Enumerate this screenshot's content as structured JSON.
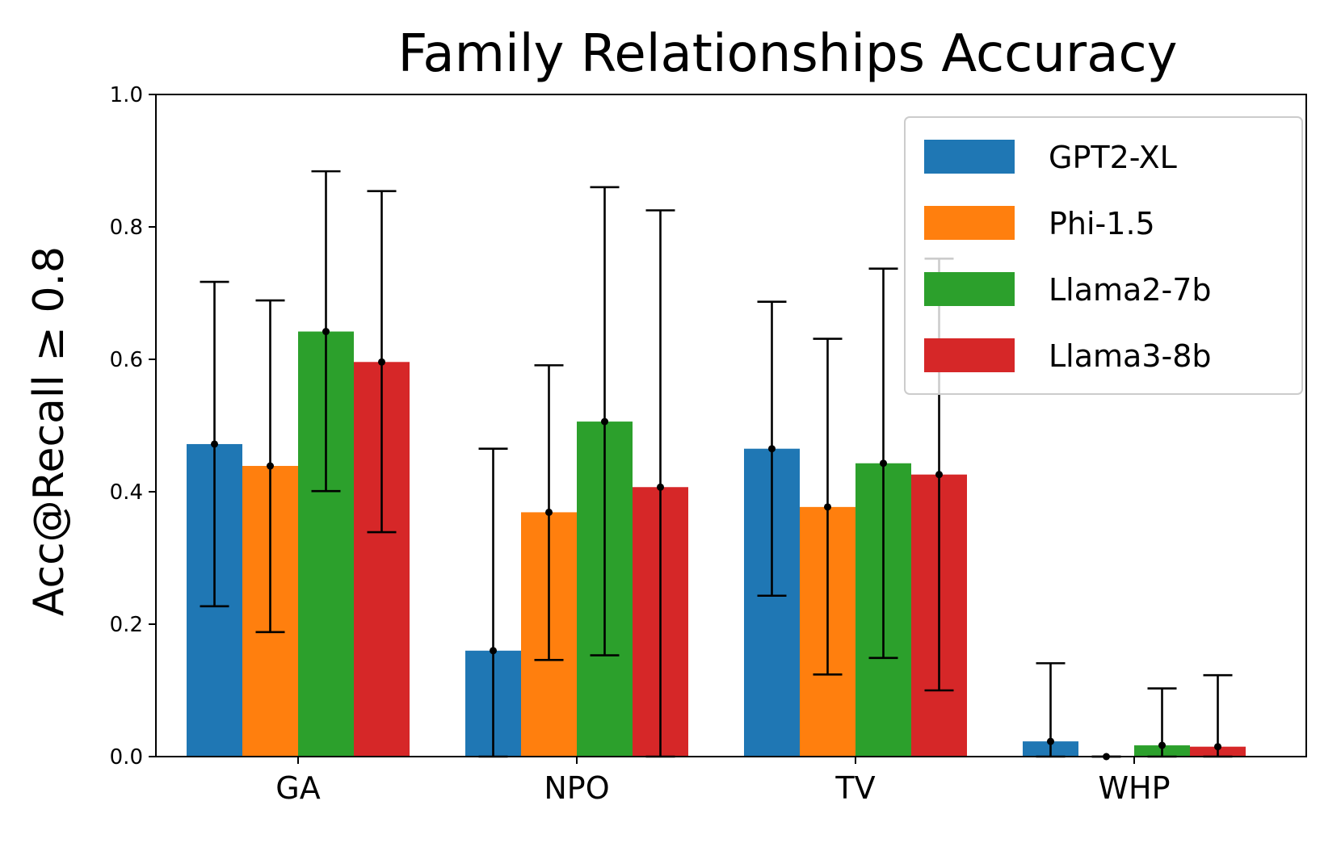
{
  "chart_data": {
    "type": "bar",
    "title": "Family Relationships Accuracy",
    "xlabel": "",
    "ylabel": "Acc@Recall ≥ 0.8",
    "ylim": [
      0,
      1.0
    ],
    "yticks": [
      "0.0",
      "0.2",
      "0.4",
      "0.6",
      "0.8",
      "1.0"
    ],
    "categories": [
      "GA",
      "NPO",
      "TV",
      "WHP"
    ],
    "legend_position": "top-right",
    "grid": false,
    "series": [
      {
        "name": "GPT2-XL",
        "color": "#1f77b4",
        "values": [
          0.472,
          0.16,
          0.465,
          0.023
        ],
        "err_low": [
          0.227,
          0.0,
          0.243,
          0.0
        ],
        "err_high": [
          0.717,
          0.465,
          0.687,
          0.141
        ]
      },
      {
        "name": "Phi-1.5",
        "color": "#ff7f0e",
        "values": [
          0.439,
          0.369,
          0.377,
          0.0
        ],
        "err_low": [
          0.188,
          0.146,
          0.124,
          0.0
        ],
        "err_high": [
          0.689,
          0.591,
          0.631,
          0.0
        ]
      },
      {
        "name": "Llama2-7b",
        "color": "#2ca02c",
        "values": [
          0.642,
          0.506,
          0.443,
          0.017
        ],
        "err_low": [
          0.401,
          0.153,
          0.149,
          0.0
        ],
        "err_high": [
          0.884,
          0.86,
          0.737,
          0.103
        ]
      },
      {
        "name": "Llama3-8b",
        "color": "#d62728",
        "values": [
          0.596,
          0.407,
          0.426,
          0.015
        ],
        "err_low": [
          0.339,
          0.0,
          0.1,
          0.0
        ],
        "err_high": [
          0.854,
          0.825,
          0.752,
          0.123
        ]
      }
    ]
  }
}
